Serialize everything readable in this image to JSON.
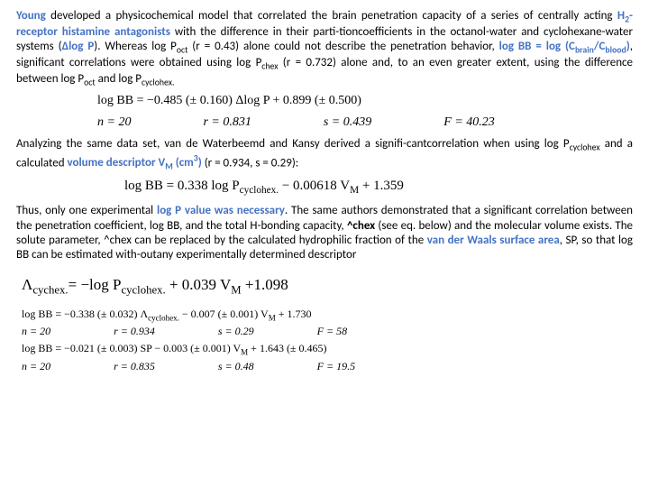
{
  "para1": {
    "young": "Young",
    "t1": " developed a physicochemical model that correlated the brain penetration capacity of a series of centrally acting ",
    "h2r": "H",
    "h2sub": "2",
    "h2rest": "-receptor histamine antagonists",
    "t2": " with the difference in their parti-tioncoefficients in the octanol-water and cyclohexane-water systems (",
    "dlogp": "Δlog P",
    "t3": "). Whereas log P",
    "oct_sub": "oct",
    "t4": " (r = 0.43) alone could not describe the penetration behavior, ",
    "bb_eq_pre": "log BB = log (C",
    "brain_sub": "brain",
    "bb_slash": "/C",
    "blood_sub": "blood",
    "bb_close": ")",
    "t5": ", significant correlations were obtained using log P",
    "chex_sub": "chex",
    "t6": " (r = 0.732) alone and, to an even greater extent, using the difference between log P",
    "t7": " and log P",
    "cyc_sub": "cyclohex.",
    "eq1": "log BB = −0.485 (± 0.160) Δlog P + 0.899 (± 0.500)",
    "n": "n = 20",
    "r": "r = 0.831",
    "s": "s = 0.439",
    "F": "F = 40.23"
  },
  "para2": {
    "t1": "Analyzing the same data set, van de Waterbeemd and Kansy derived a signifi-cantcorrelation when using log P",
    "cyc_sub": "cyclohex",
    "t2": " and a calculated ",
    "vol": "volume descriptor V",
    "vm_sub": "M",
    "vol_unit": " (cm",
    "vol_sup": "3",
    "vol_close": ")",
    "t3": " (r = 0.934, s = 0.29):",
    "eq2a": "log BB = 0.338 log P",
    "eq2_sub": "cyclohex.",
    "eq2b": " − 0.00618 V",
    "eq2_vm": "M",
    "eq2c": " + 1.359"
  },
  "para3": {
    "t1": "Thus, only one experimental ",
    "logp": "log P value was necessary",
    "t2": ". The same authors demonstrated that a significant correlation between the penetration coefficient, log BB, and the total H-bonding capacity, ",
    "chex": "^chex",
    "t3": " (see eq. below) and the molecular volume exists. The solute parameter, ^chex can be replaced by the calculated hydrophilic fraction of the ",
    "vdw": "van der Waals surface area",
    "t4": ", SP, so that log BB can be estimated with-outany experimentally determined descriptor"
  },
  "eq3": {
    "a": "Λ",
    "asub": "cychex.",
    "b": "= −log P",
    "bsub": "cyclohex.",
    "c": " + 0.039 V",
    "csub": "M",
    "d": " +1.098"
  },
  "eq4": {
    "line": "log BB = −0.338 (± 0.032) Λ",
    "sub": "cyclohex.",
    "rest": " − 0.007 (± 0.001) V",
    "vm": "M",
    "end": " + 1.730",
    "n": "n = 20",
    "r": "r = 0.934",
    "s": "s = 0.29",
    "F": "F = 58"
  },
  "eq5": {
    "line": "log BB = −0.021 (± 0.003) SP − 0.003 (± 0.001) V",
    "vm": "M",
    "end": " + 1.643 (± 0.465)",
    "n": "n = 20",
    "r": "r = 0.835",
    "s": "s = 0.48",
    "F": "F = 19.5"
  }
}
